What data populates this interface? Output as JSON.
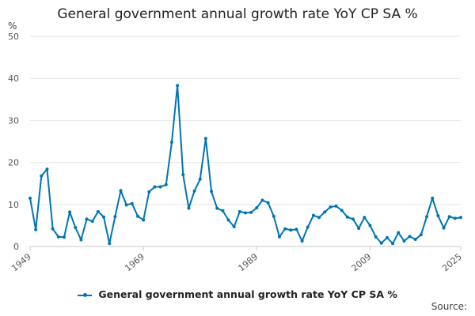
{
  "chart_data": {
    "type": "line",
    "title": "General government annual growth rate YoY CP SA %",
    "y_unit": "%",
    "ylim": [
      0,
      50
    ],
    "y_ticks": [
      0,
      10,
      20,
      30,
      40,
      50
    ],
    "xlim": [
      1949,
      2025
    ],
    "x_ticks": [
      "1949",
      "1969",
      "1989",
      "2009",
      "2025"
    ],
    "grid": "horizontal",
    "legend_position": "bottom",
    "series": [
      {
        "name": "General government annual growth rate YoY CP SA %",
        "color": "#0075b0",
        "x": [
          1949,
          1950,
          1951,
          1952,
          1953,
          1954,
          1955,
          1956,
          1957,
          1958,
          1959,
          1960,
          1961,
          1962,
          1963,
          1964,
          1965,
          1966,
          1967,
          1968,
          1969,
          1970,
          1971,
          1972,
          1973,
          1974,
          1975,
          1976,
          1977,
          1978,
          1979,
          1980,
          1981,
          1982,
          1983,
          1984,
          1985,
          1986,
          1987,
          1988,
          1989,
          1990,
          1991,
          1992,
          1993,
          1994,
          1995,
          1996,
          1997,
          1998,
          1999,
          2000,
          2001,
          2002,
          2003,
          2004,
          2005,
          2006,
          2007,
          2008,
          2009,
          2010,
          2011,
          2012,
          2013,
          2014,
          2015,
          2016,
          2017,
          2018,
          2019,
          2020,
          2021,
          2022,
          2023,
          2024,
          2025
        ],
        "values": [
          11.5,
          4.0,
          16.8,
          18.4,
          4.2,
          2.3,
          2.2,
          8.2,
          4.5,
          1.6,
          6.5,
          6.0,
          8.3,
          7.0,
          0.7,
          7.1,
          13.3,
          9.9,
          10.2,
          7.2,
          6.3,
          13.0,
          14.2,
          14.2,
          14.7,
          24.8,
          38.3,
          17.1,
          9.1,
          13.2,
          16.0,
          25.7,
          13.1,
          9.1,
          8.5,
          6.3,
          4.7,
          8.3,
          8.0,
          8.1,
          9.2,
          11.0,
          10.4,
          7.2,
          2.3,
          4.2,
          3.9,
          4.1,
          1.3,
          4.6,
          7.4,
          6.9,
          8.2,
          9.4,
          9.6,
          8.6,
          7.0,
          6.5,
          4.3,
          6.9,
          5.0,
          2.3,
          0.8,
          2.1,
          0.7,
          3.3,
          1.3,
          2.4,
          1.7,
          2.8,
          7.1,
          11.5,
          7.3,
          4.4,
          7.1,
          6.7,
          6.9
        ]
      }
    ]
  },
  "legend": {
    "label": "General government annual growth rate YoY CP SA %"
  },
  "source": {
    "label": "Source:"
  }
}
